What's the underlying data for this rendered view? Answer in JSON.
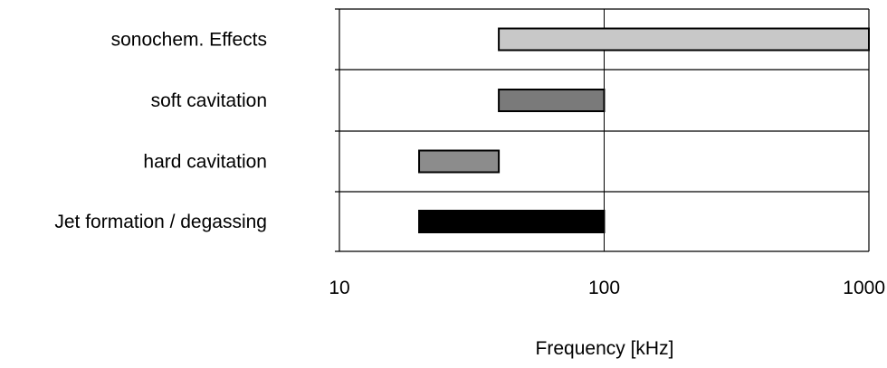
{
  "chart_data": {
    "type": "bar",
    "orientation": "horizontal-range",
    "title": "",
    "xlabel": "Frequency [kHz]",
    "ylabel": "",
    "x_scale": "log",
    "xlim": [
      10,
      1000
    ],
    "x_ticks": [
      {
        "value": 10,
        "label": "10"
      },
      {
        "value": 100,
        "label": "100"
      },
      {
        "value": 1000,
        "label": "1000"
      }
    ],
    "grid": "vertical line at 100, horizontal separators between rows",
    "legend": "none",
    "categories": [
      "sonochem. Effects",
      "soft cavitation",
      "hard cavitation",
      "Jet formation / degassing"
    ],
    "ranges": [
      {
        "start": 40,
        "end": 1000,
        "color": "#c8c8c8"
      },
      {
        "start": 40,
        "end": 100,
        "color": "#7a7a7a"
      },
      {
        "start": 20,
        "end": 40,
        "color": "#8c8c8c"
      },
      {
        "start": 20,
        "end": 100,
        "color": "#000000"
      }
    ]
  }
}
